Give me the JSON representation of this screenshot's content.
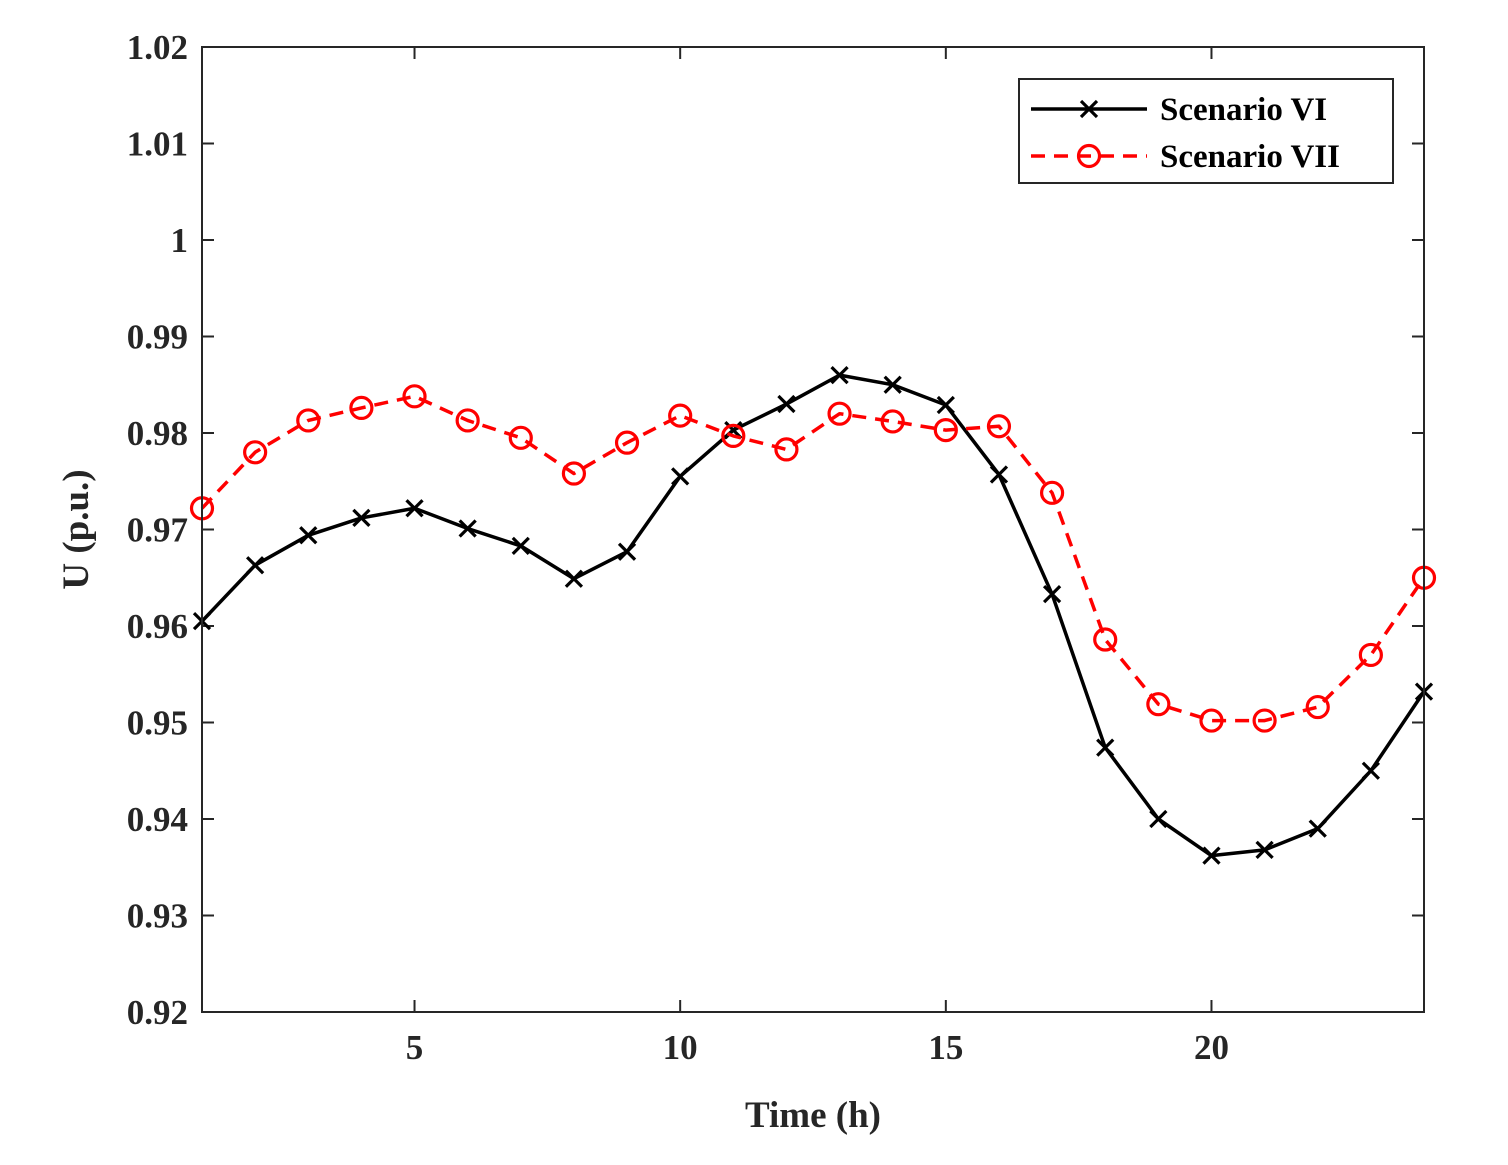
{
  "chart_data": {
    "type": "line",
    "xlabel": "Time (h)",
    "ylabel": "U (p.u.)",
    "xlim": [
      1,
      24
    ],
    "ylim": [
      0.92,
      1.02
    ],
    "xticks": [
      5,
      10,
      15,
      20
    ],
    "yticks": [
      0.92,
      0.93,
      0.94,
      0.95,
      0.96,
      0.97,
      0.98,
      0.99,
      1,
      1.01,
      1.02
    ],
    "ytick_labels": [
      "0.92",
      "0.93",
      "0.94",
      "0.95",
      "0.96",
      "0.97",
      "0.98",
      "0.99",
      "1",
      "1.01",
      "1.02"
    ],
    "grid": false,
    "legend_position": "top-right",
    "x": [
      1,
      2,
      3,
      4,
      5,
      6,
      7,
      8,
      9,
      10,
      11,
      12,
      13,
      14,
      15,
      16,
      17,
      18,
      19,
      20,
      21,
      22,
      23,
      24
    ],
    "series": [
      {
        "name": "Scenario VI",
        "color": "#000000",
        "line_style": "solid",
        "marker": "x",
        "values": [
          0.9605,
          0.9663,
          0.9694,
          0.9712,
          0.9722,
          0.9701,
          0.9683,
          0.9649,
          0.9677,
          0.9755,
          0.9803,
          0.983,
          0.986,
          0.985,
          0.9829,
          0.9757,
          0.9633,
          0.9474,
          0.94,
          0.9362,
          0.9368,
          0.939,
          0.945,
          0.9532
        ]
      },
      {
        "name": "Scenario VII",
        "color": "#ff0000",
        "line_style": "dashed",
        "marker": "o",
        "values": [
          0.9722,
          0.978,
          0.9813,
          0.9826,
          0.9838,
          0.9813,
          0.9795,
          0.9758,
          0.979,
          0.9818,
          0.9797,
          0.9783,
          0.982,
          0.9812,
          0.9803,
          0.9807,
          0.9738,
          0.9586,
          0.9519,
          0.9502,
          0.9502,
          0.9516,
          0.957,
          0.965
        ]
      }
    ]
  }
}
